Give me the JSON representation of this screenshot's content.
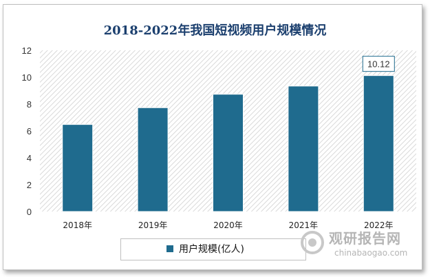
{
  "title": "2018-2022年我国短视频用户规模情况",
  "chart_data": {
    "type": "bar",
    "categories": [
      "2018年",
      "2019年",
      "2020年",
      "2021年",
      "2022年"
    ],
    "series": [
      {
        "name": "用户规模(亿人)",
        "values": [
          6.48,
          7.73,
          8.73,
          9.34,
          10.12
        ]
      }
    ],
    "title": "2018-2022年我国短视频用户规模情况",
    "xlabel": "",
    "ylabel": "",
    "ylim": [
      0,
      12
    ],
    "yticks": [
      0,
      2,
      4,
      6,
      8,
      10,
      12
    ],
    "annotation": {
      "category": "2022年",
      "text": "10.12"
    },
    "legend": "bottom",
    "bar_color": "#1f6b8e",
    "grid": "hatched plot background"
  },
  "legend": {
    "label": "用户规模(亿人)"
  },
  "watermark": {
    "cn": "观研报告网",
    "en": "chinabaogao.com"
  }
}
